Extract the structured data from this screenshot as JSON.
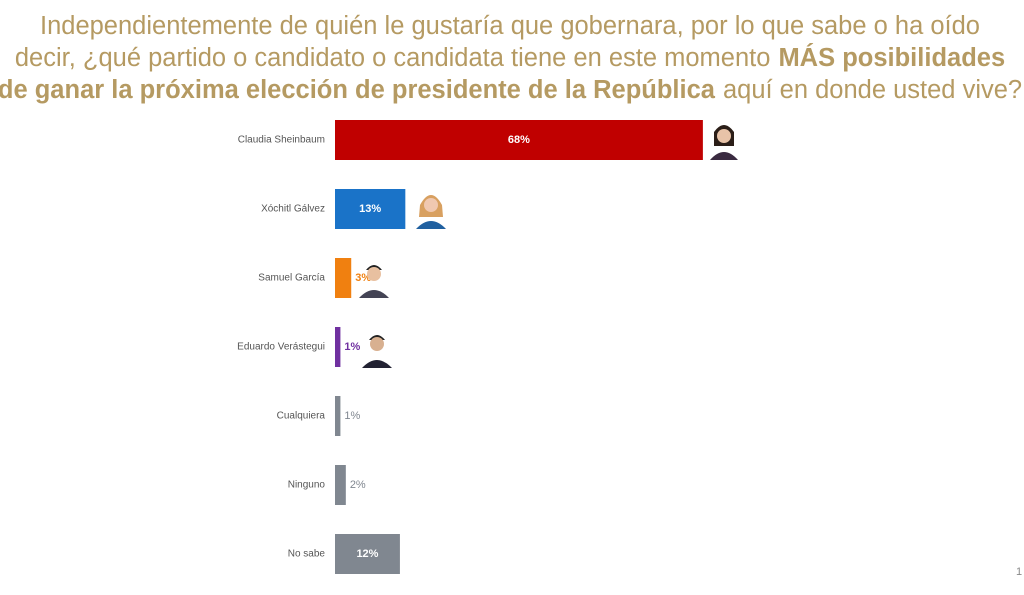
{
  "chart_data": {
    "type": "bar",
    "orientation": "horizontal",
    "title_segments": [
      "Independientemente de quién le gustaría que gobernara, por lo que sabe o ha oído",
      "decir, ¿qué partido o candidato o candidata tiene en este momento",
      "MÁS posibilidades",
      "de ganar la próxima elección de presidente de la República",
      "aquí en donde usted vive?"
    ],
    "categories": [
      "Claudia Sheinbaum",
      "Xóchitl Gálvez",
      "Samuel García",
      "Eduardo Verástegui",
      "Cualquiera",
      "Ninguno",
      "No sabe"
    ],
    "values": [
      68,
      13,
      3,
      1,
      1,
      2,
      12
    ],
    "value_labels": [
      "68%",
      "13%",
      "3%",
      "1%",
      "1%",
      "2%",
      "12%"
    ],
    "colors": [
      "#c00000",
      "#1a73c8",
      "#f08010",
      "#7030a0",
      "#808790",
      "#808790",
      "#808790"
    ],
    "page_number": "1"
  }
}
